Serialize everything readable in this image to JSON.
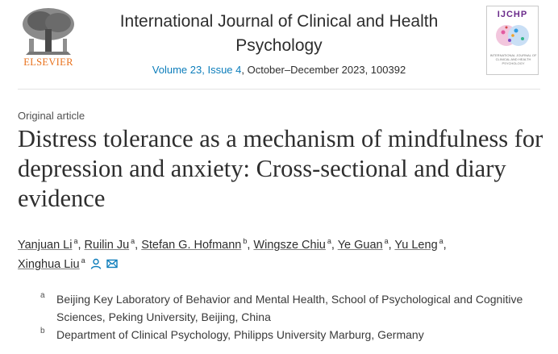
{
  "publisher": {
    "name": "ELSEVIER"
  },
  "journal": {
    "title": "International Journal of Clinical and Health Psychology",
    "issue_link": "Volume 23, Issue 4",
    "issue_date": ", October–December 2023, 100392",
    "cover_acronym": "IJCHP",
    "cover_caption": "INTERNATIONAL JOURNAL OF CLINICAL AND HEALTH PSYCHOLOGY"
  },
  "article": {
    "type": "Original article",
    "title": "Distress tolerance as a mechanism of mindfulness for depression and anxiety: Cross-sectional and diary evidence"
  },
  "authors": [
    {
      "name": "Yanjuan Li",
      "aff": "a"
    },
    {
      "name": "Ruilin Ju",
      "aff": "a"
    },
    {
      "name": "Stefan G. Hofmann",
      "aff": "b"
    },
    {
      "name": "Wingsze Chiu",
      "aff": "a"
    },
    {
      "name": "Ye Guan",
      "aff": "a"
    },
    {
      "name": "Yu Leng",
      "aff": "a"
    },
    {
      "name": "Xinghua Liu",
      "aff": "a"
    }
  ],
  "affiliations": [
    {
      "label": "a",
      "text": "Beijing Key Laboratory of Behavior and Mental Health, School of Psychological and Cognitive Sciences, Peking University, Beijing, China"
    },
    {
      "label": "b",
      "text": "Department of Clinical Psychology, Philipps University Marburg, Germany"
    }
  ],
  "colors": {
    "link": "#0c7dbb",
    "elsevier_orange": "#e9711c",
    "icon": "#0c7dbb"
  },
  "icons": {
    "author_profile": "person-icon",
    "email": "mail-icon"
  }
}
